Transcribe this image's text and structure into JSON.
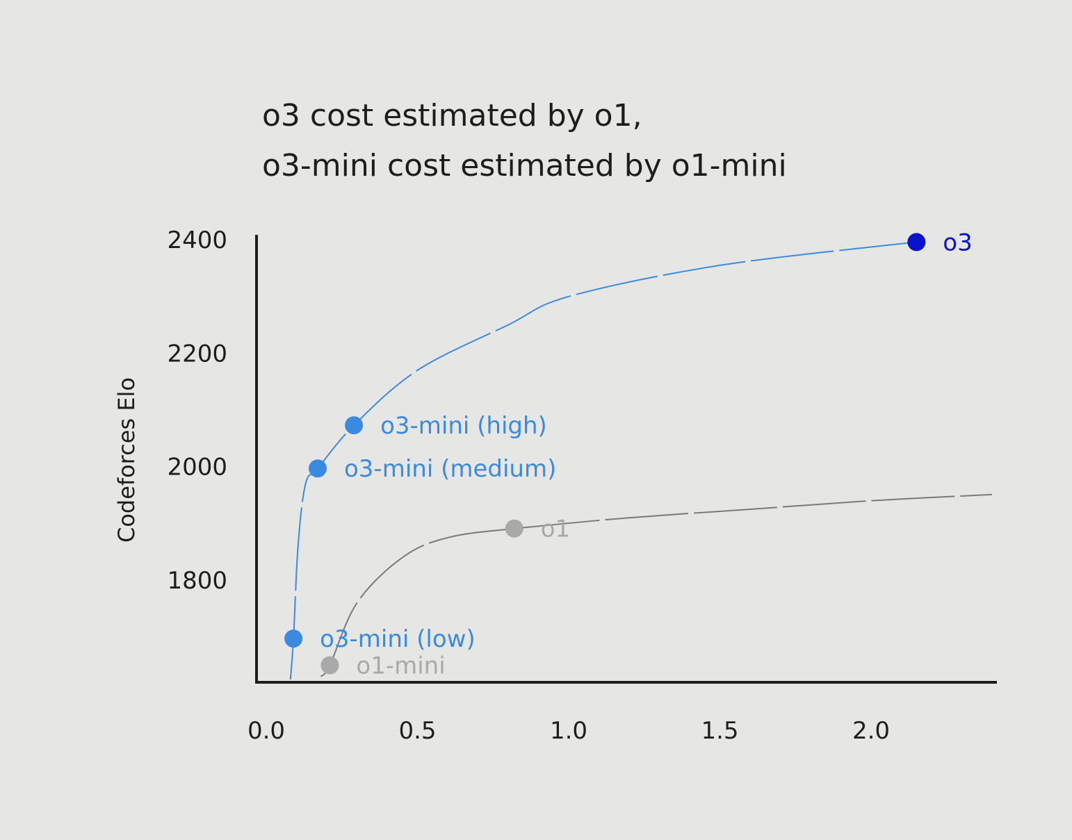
{
  "chart_data": {
    "type": "scatter",
    "title_lines": [
      "o3 cost estimated by o1,",
      "o3-mini cost estimated by o1-mini"
    ],
    "xlabel": "",
    "ylabel": "Codeforces Elo",
    "xlim": [
      0.0,
      2.4
    ],
    "ylim": [
      1620,
      2410
    ],
    "x_ticks": [
      0.0,
      0.5,
      1.0,
      1.5,
      2.0
    ],
    "x_tick_labels": [
      "0.0",
      "0.5",
      "1.0",
      "1.5",
      "2.0"
    ],
    "y_ticks": [
      1800,
      2000,
      2200,
      2400
    ],
    "y_tick_labels": [
      "1800",
      "2000",
      "2200",
      "2400"
    ],
    "grid": false,
    "legend": "none",
    "points": [
      {
        "label": "o3-mini (low)",
        "x": 0.09,
        "y": 1697,
        "color": "#3a8ae0"
      },
      {
        "label": "o3-mini (medium)",
        "x": 0.17,
        "y": 1997,
        "color": "#3a8ae0"
      },
      {
        "label": "o3-mini (high)",
        "x": 0.29,
        "y": 2073,
        "color": "#3a8ae0"
      },
      {
        "label": "o3",
        "x": 2.15,
        "y": 2396,
        "color": "#0a12cc"
      },
      {
        "label": "o1-mini",
        "x": 0.21,
        "y": 1650,
        "color": "#a9a9a9"
      },
      {
        "label": "o1",
        "x": 0.82,
        "y": 1891,
        "color": "#a9a9a9"
      }
    ],
    "trend_lines": [
      {
        "color": "#3a8ae0",
        "points": [
          [
            0.08,
            1625
          ],
          [
            0.09,
            1697
          ],
          [
            0.105,
            1860
          ],
          [
            0.13,
            1970
          ],
          [
            0.17,
            1997
          ],
          [
            0.29,
            2073
          ],
          [
            0.5,
            2170
          ],
          [
            0.8,
            2250
          ],
          [
            1.0,
            2300
          ],
          [
            1.5,
            2355
          ],
          [
            2.15,
            2396
          ]
        ]
      },
      {
        "color": "#7a7a7a",
        "points": [
          [
            0.18,
            1630
          ],
          [
            0.21,
            1650
          ],
          [
            0.3,
            1760
          ],
          [
            0.45,
            1840
          ],
          [
            0.6,
            1875
          ],
          [
            0.82,
            1891
          ],
          [
            1.2,
            1910
          ],
          [
            1.6,
            1925
          ],
          [
            2.0,
            1940
          ],
          [
            2.4,
            1951
          ]
        ]
      }
    ]
  }
}
